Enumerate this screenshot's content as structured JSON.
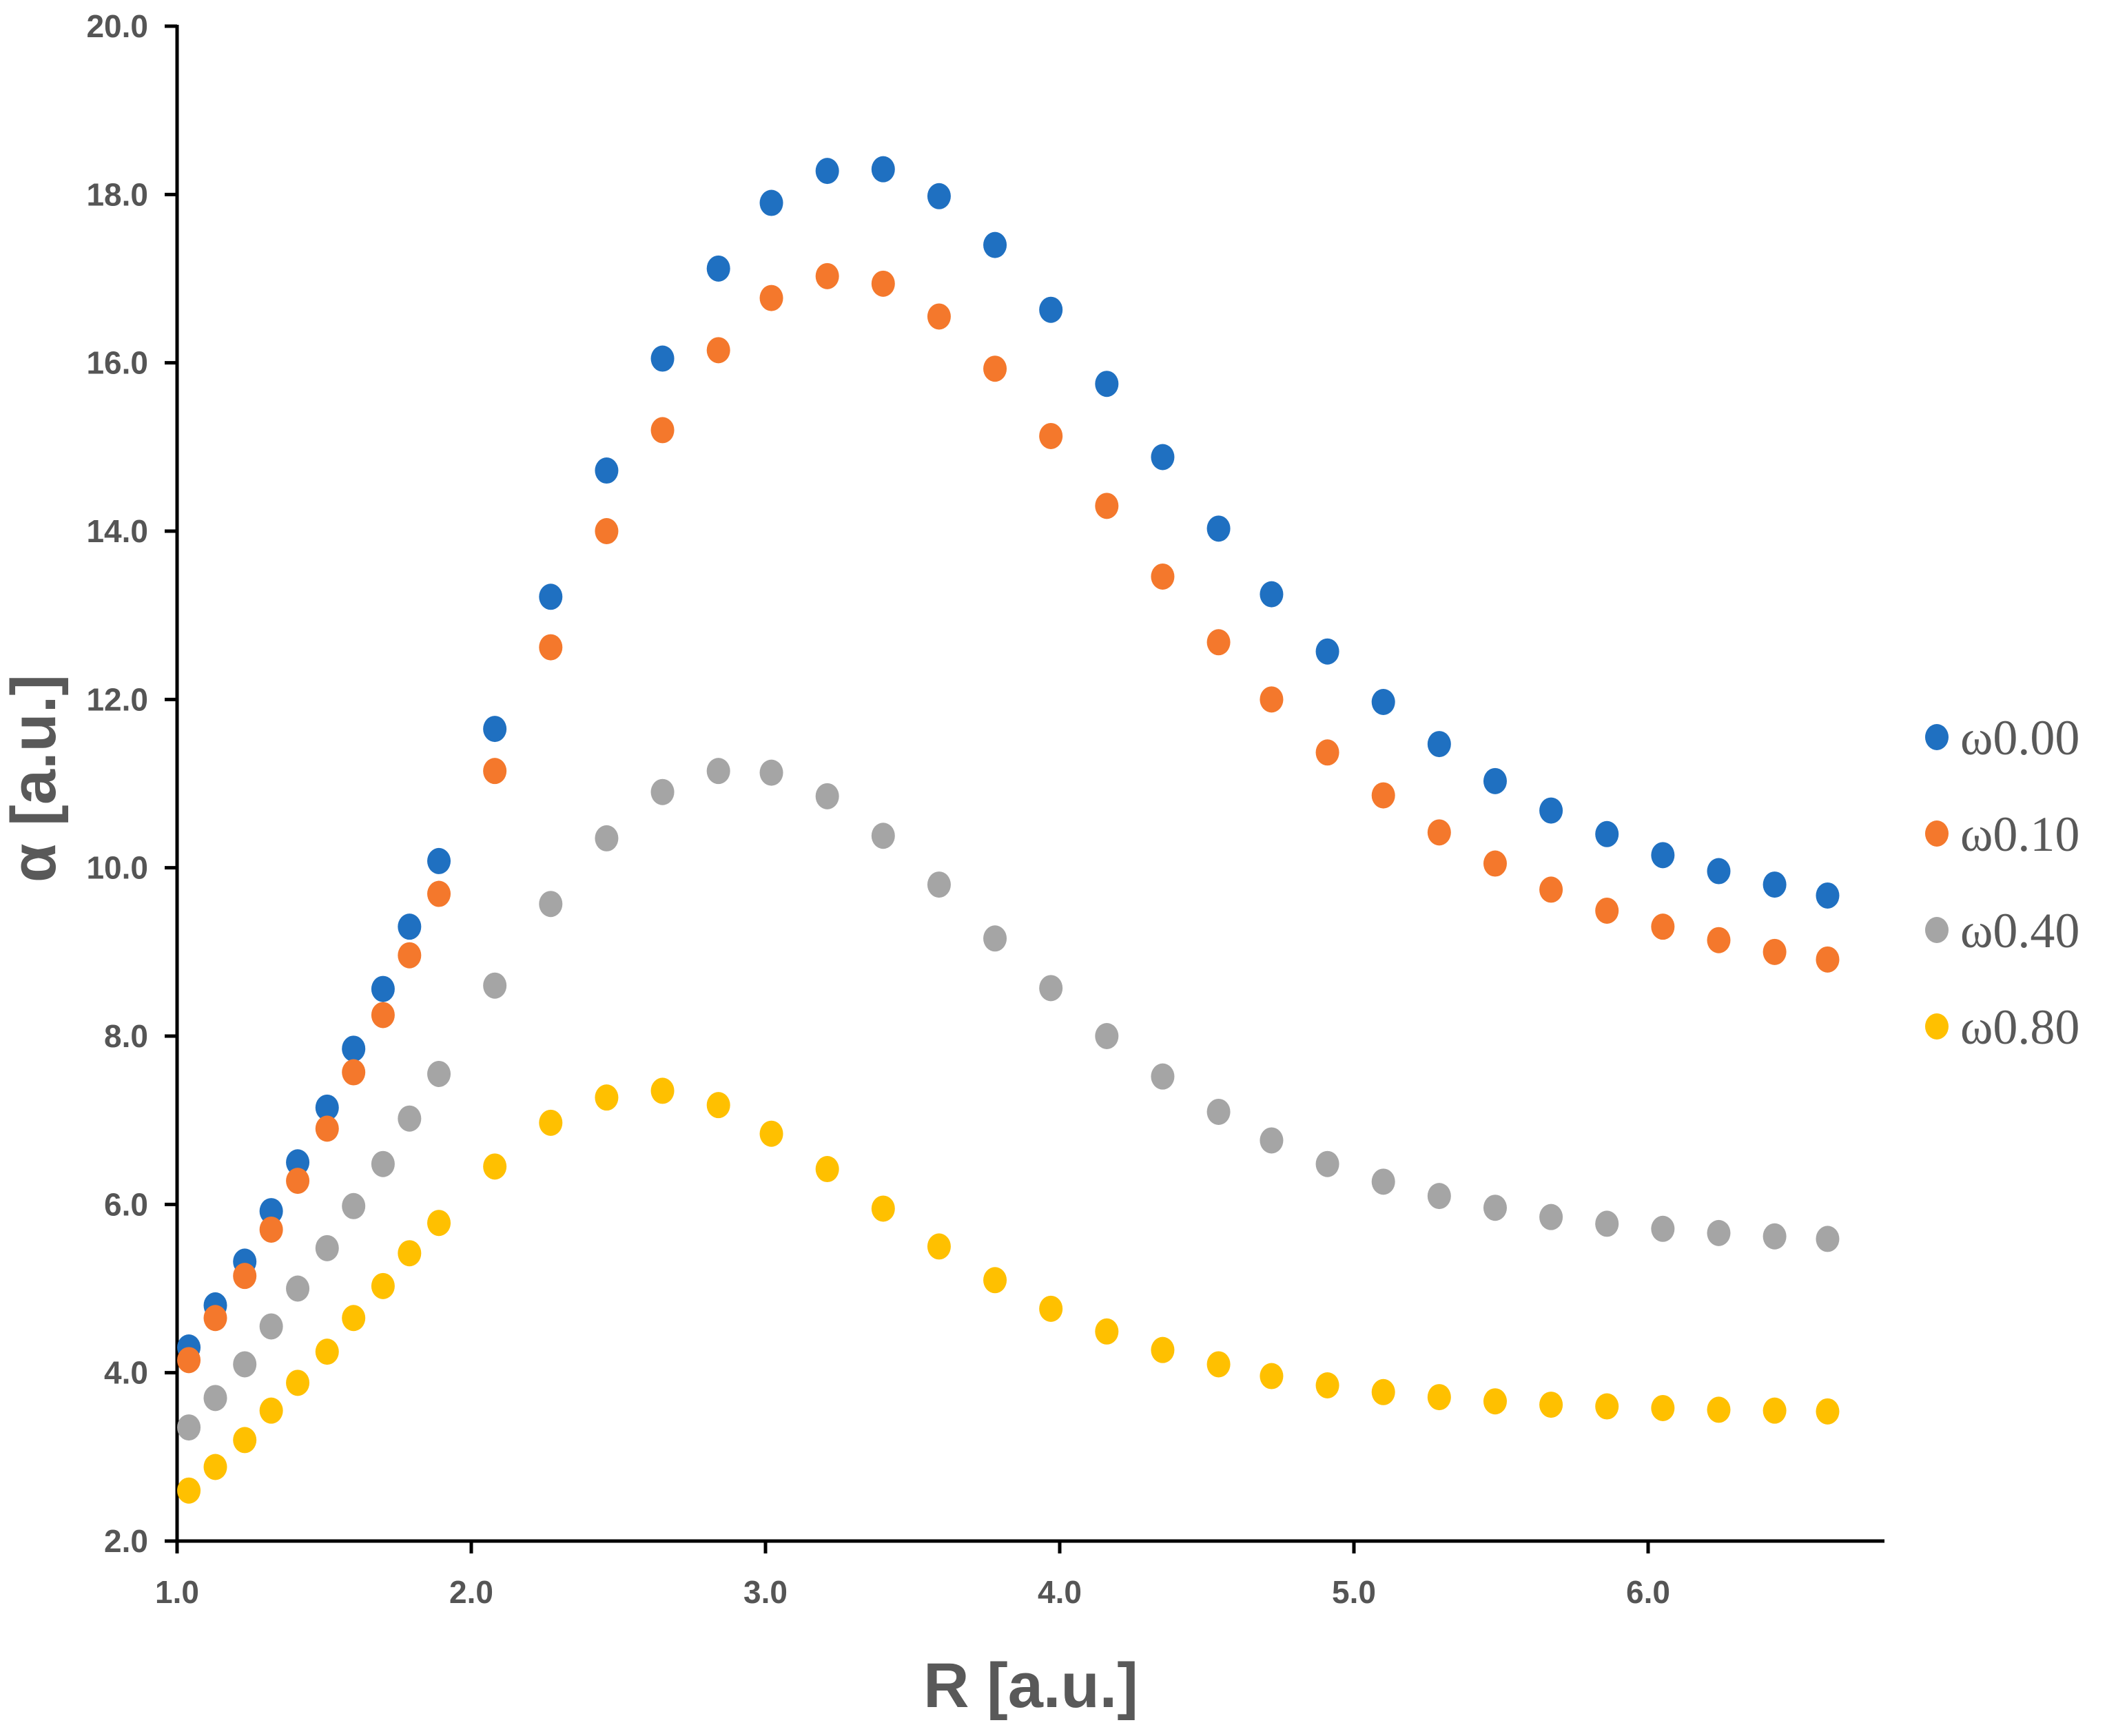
{
  "chart_data": {
    "type": "scatter",
    "title": "",
    "xlabel": "R [a.u.]",
    "ylabel": "α [a.u.]",
    "xlim": [
      1.0,
      6.8
    ],
    "ylim": [
      2.0,
      20.0
    ],
    "xticks": [
      "1.0",
      "2.0",
      "3.0",
      "4.0",
      "5.0",
      "6.0"
    ],
    "yticks": [
      "2.0",
      "4.0",
      "6.0",
      "8.0",
      "10.0",
      "12.0",
      "14.0",
      "16.0",
      "18.0",
      "20.0"
    ],
    "grid": false,
    "legend_position": "right",
    "x": [
      1.04,
      1.13,
      1.23,
      1.32,
      1.41,
      1.51,
      1.6,
      1.7,
      1.79,
      1.89,
      2.08,
      2.27,
      2.46,
      2.65,
      2.84,
      3.02,
      3.21,
      3.4,
      3.59,
      3.78,
      3.97,
      4.16,
      4.35,
      4.54,
      4.72,
      4.91,
      5.1,
      5.29,
      5.48,
      5.67,
      5.86,
      6.05,
      6.24,
      6.43,
      6.61
    ],
    "series": [
      {
        "name": "ω0.00",
        "color": "#1f70c1",
        "values": [
          4.3,
          4.8,
          5.32,
          5.92,
          6.5,
          7.15,
          7.85,
          8.56,
          9.3,
          10.08,
          11.65,
          13.22,
          14.72,
          16.05,
          17.12,
          17.9,
          18.28,
          18.3,
          17.98,
          17.4,
          16.63,
          15.75,
          14.88,
          14.03,
          13.25,
          12.57,
          11.97,
          11.47,
          11.03,
          10.68,
          10.4,
          10.15,
          9.96,
          9.8,
          9.67
        ]
      },
      {
        "name": "ω0.10",
        "color": "#f4782c",
        "values": [
          4.15,
          4.65,
          5.15,
          5.7,
          6.28,
          6.9,
          7.57,
          8.25,
          8.96,
          9.69,
          11.15,
          12.62,
          14.0,
          15.2,
          16.15,
          16.77,
          17.03,
          16.94,
          16.55,
          15.93,
          15.13,
          14.3,
          13.46,
          12.68,
          12.0,
          11.37,
          10.86,
          10.42,
          10.05,
          9.74,
          9.49,
          9.3,
          9.14,
          9.0,
          8.91
        ]
      },
      {
        "name": "ω0.40",
        "color": "#a5a5a5",
        "values": [
          3.35,
          3.7,
          4.1,
          4.55,
          5.0,
          5.48,
          5.98,
          6.48,
          7.02,
          7.55,
          8.6,
          9.57,
          10.35,
          10.9,
          11.15,
          11.13,
          10.85,
          10.38,
          9.8,
          9.16,
          8.57,
          8.0,
          7.52,
          7.1,
          6.76,
          6.48,
          6.27,
          6.1,
          5.96,
          5.85,
          5.77,
          5.71,
          5.66,
          5.62,
          5.59
        ]
      },
      {
        "name": "ω0.80",
        "color": "#ffc000",
        "values": [
          2.6,
          2.88,
          3.2,
          3.55,
          3.88,
          4.25,
          4.65,
          5.03,
          5.42,
          5.78,
          6.45,
          6.97,
          7.27,
          7.35,
          7.18,
          6.84,
          6.42,
          5.95,
          5.5,
          5.1,
          4.76,
          4.49,
          4.27,
          4.1,
          3.96,
          3.85,
          3.77,
          3.71,
          3.66,
          3.62,
          3.6,
          3.58,
          3.56,
          3.55,
          3.54
        ]
      }
    ]
  }
}
